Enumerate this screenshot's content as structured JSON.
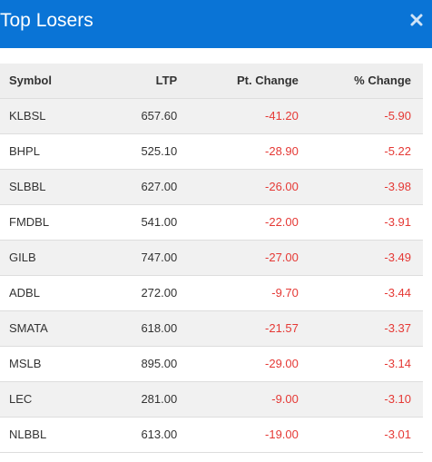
{
  "header": {
    "title": "Top Losers",
    "close_icon": "close-icon",
    "bg_color": "#0a74d6"
  },
  "table": {
    "columns": {
      "symbol": "Symbol",
      "ltp": "LTP",
      "pt_change": "Pt. Change",
      "pct_change": "% Change"
    },
    "negative_color": "#e53935",
    "rows": [
      {
        "symbol": "KLBSL",
        "ltp": "657.60",
        "pt_change": "-41.20",
        "pct_change": "-5.90"
      },
      {
        "symbol": "BHPL",
        "ltp": "525.10",
        "pt_change": "-28.90",
        "pct_change": "-5.22"
      },
      {
        "symbol": "SLBBL",
        "ltp": "627.00",
        "pt_change": "-26.00",
        "pct_change": "-3.98"
      },
      {
        "symbol": "FMDBL",
        "ltp": "541.00",
        "pt_change": "-22.00",
        "pct_change": "-3.91"
      },
      {
        "symbol": "GILB",
        "ltp": "747.00",
        "pt_change": "-27.00",
        "pct_change": "-3.49"
      },
      {
        "symbol": "ADBL",
        "ltp": "272.00",
        "pt_change": "-9.70",
        "pct_change": "-3.44"
      },
      {
        "symbol": "SMATA",
        "ltp": "618.00",
        "pt_change": "-21.57",
        "pct_change": "-3.37"
      },
      {
        "symbol": "MSLB",
        "ltp": "895.00",
        "pt_change": "-29.00",
        "pct_change": "-3.14"
      },
      {
        "symbol": "LEC",
        "ltp": "281.00",
        "pt_change": "-9.00",
        "pct_change": "-3.10"
      },
      {
        "symbol": "NLBBL",
        "ltp": "613.00",
        "pt_change": "-19.00",
        "pct_change": "-3.01"
      }
    ]
  }
}
